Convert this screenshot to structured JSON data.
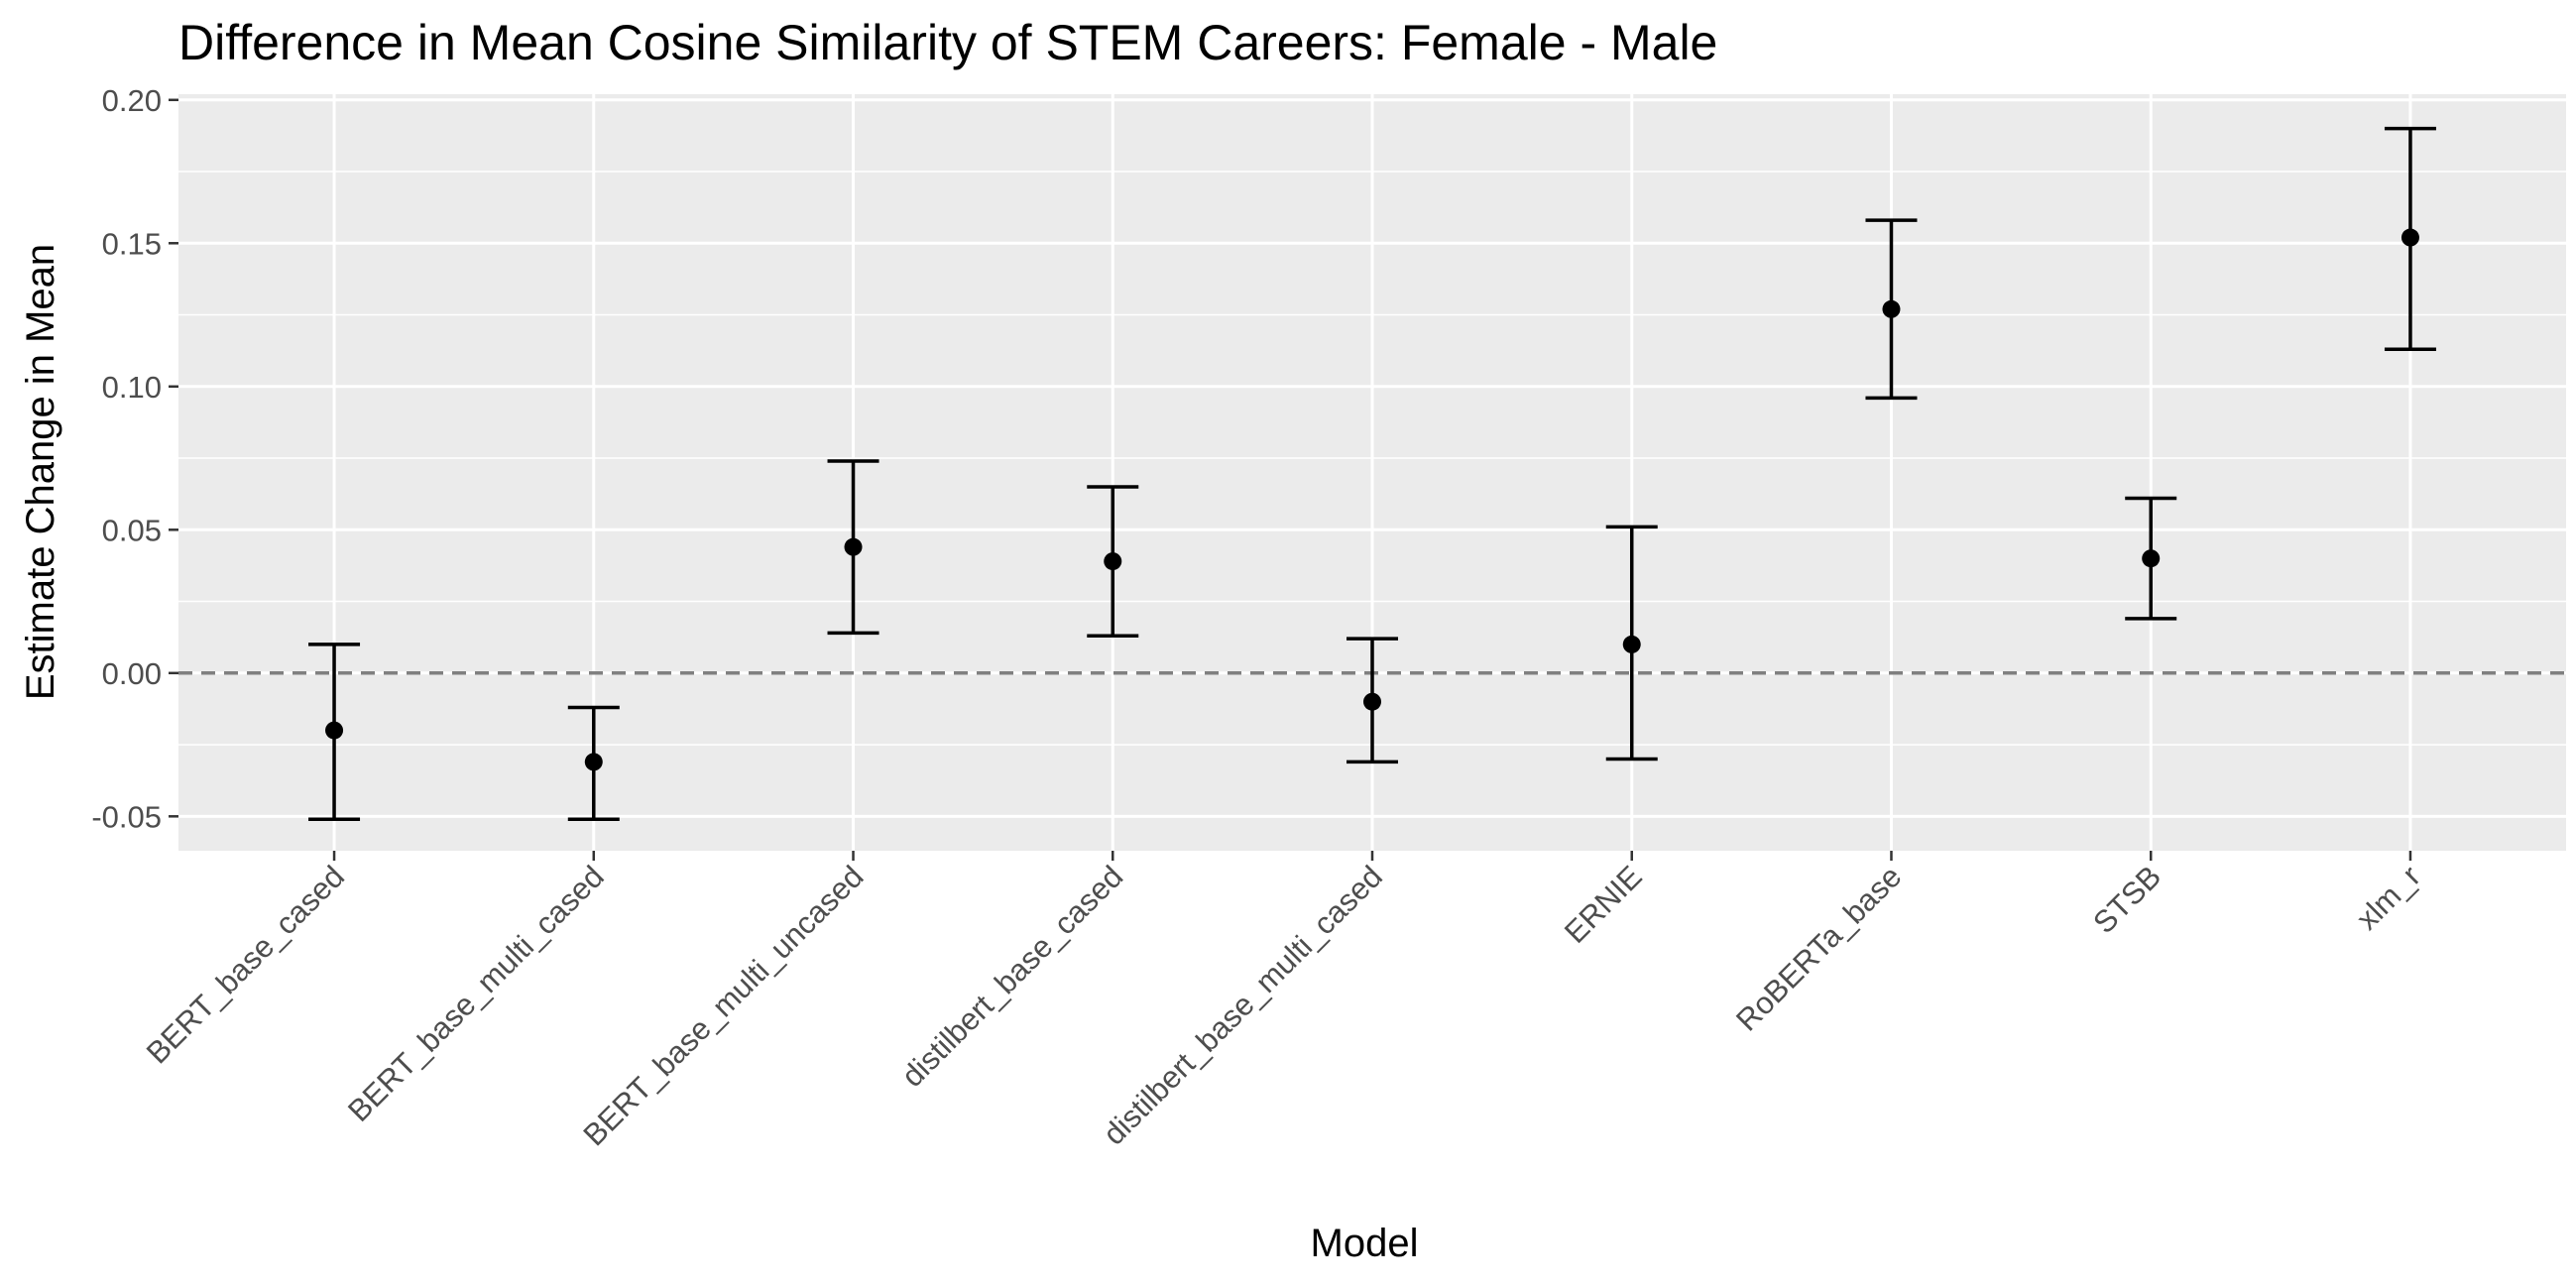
{
  "chart_data": {
    "type": "scatter",
    "title": "Difference in Mean Cosine Similarity of STEM Careers: Female - Male",
    "xlabel": "Model",
    "ylabel": "Estimate Change in Mean",
    "categories": [
      "BERT_base_cased",
      "BERT_base_multi_cased",
      "BERT_base_multi_uncased",
      "distilbert_base_cased",
      "distilbert_base_multi_cased",
      "ERNIE",
      "RoBERTa_base",
      "STSB",
      "xlm_r"
    ],
    "estimates": [
      -0.02,
      -0.031,
      0.044,
      0.039,
      -0.01,
      0.01,
      0.127,
      0.04,
      0.152
    ],
    "lower": [
      -0.051,
      -0.051,
      0.014,
      0.013,
      -0.031,
      -0.03,
      0.096,
      0.019,
      0.113
    ],
    "upper": [
      0.01,
      -0.012,
      0.074,
      0.065,
      0.012,
      0.051,
      0.158,
      0.061,
      0.19
    ],
    "ylim": [
      -0.062,
      0.202
    ],
    "yticks": [
      -0.05,
      0.0,
      0.05,
      0.1,
      0.15,
      0.2
    ],
    "ytick_labels": [
      "-0.05",
      "0.00",
      "0.05",
      "0.10",
      "0.15",
      "0.20"
    ],
    "reference_line": 0,
    "grid": true,
    "colors": {
      "panel": "#ebebeb",
      "grid": "#ffffff",
      "point": "#000000",
      "reference_line": "#808080",
      "tick_text": "#4d4d4d"
    }
  }
}
